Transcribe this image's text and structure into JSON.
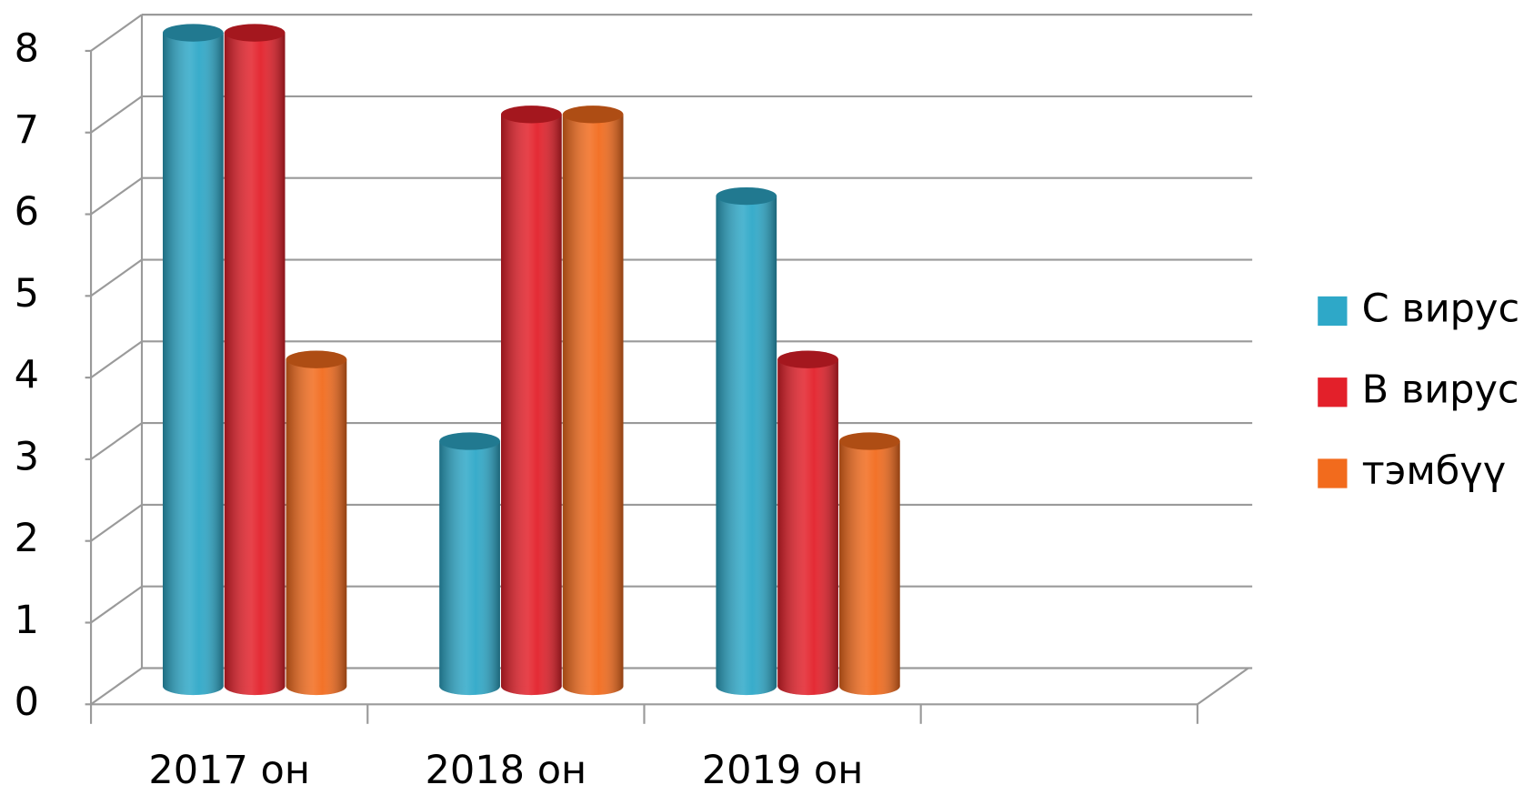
{
  "chart_data": {
    "type": "bar3d",
    "categories": [
      "2017 он",
      "2018 он",
      "2019 он",
      null
    ],
    "series": [
      {
        "name": "С вирус",
        "color": "#2ea8c8",
        "values": [
          8,
          3,
          6,
          null
        ]
      },
      {
        "name": "В вирус",
        "color": "#e3202a",
        "values": [
          8,
          7,
          4,
          null
        ]
      },
      {
        "name": "тэмбүү",
        "color": "#f26b1d",
        "values": [
          4,
          7,
          3,
          null
        ]
      }
    ],
    "ylim": [
      0,
      8
    ],
    "yticks": [
      0,
      1,
      2,
      3,
      4,
      5,
      6,
      7,
      8
    ],
    "grid": true,
    "legend": "right"
  }
}
